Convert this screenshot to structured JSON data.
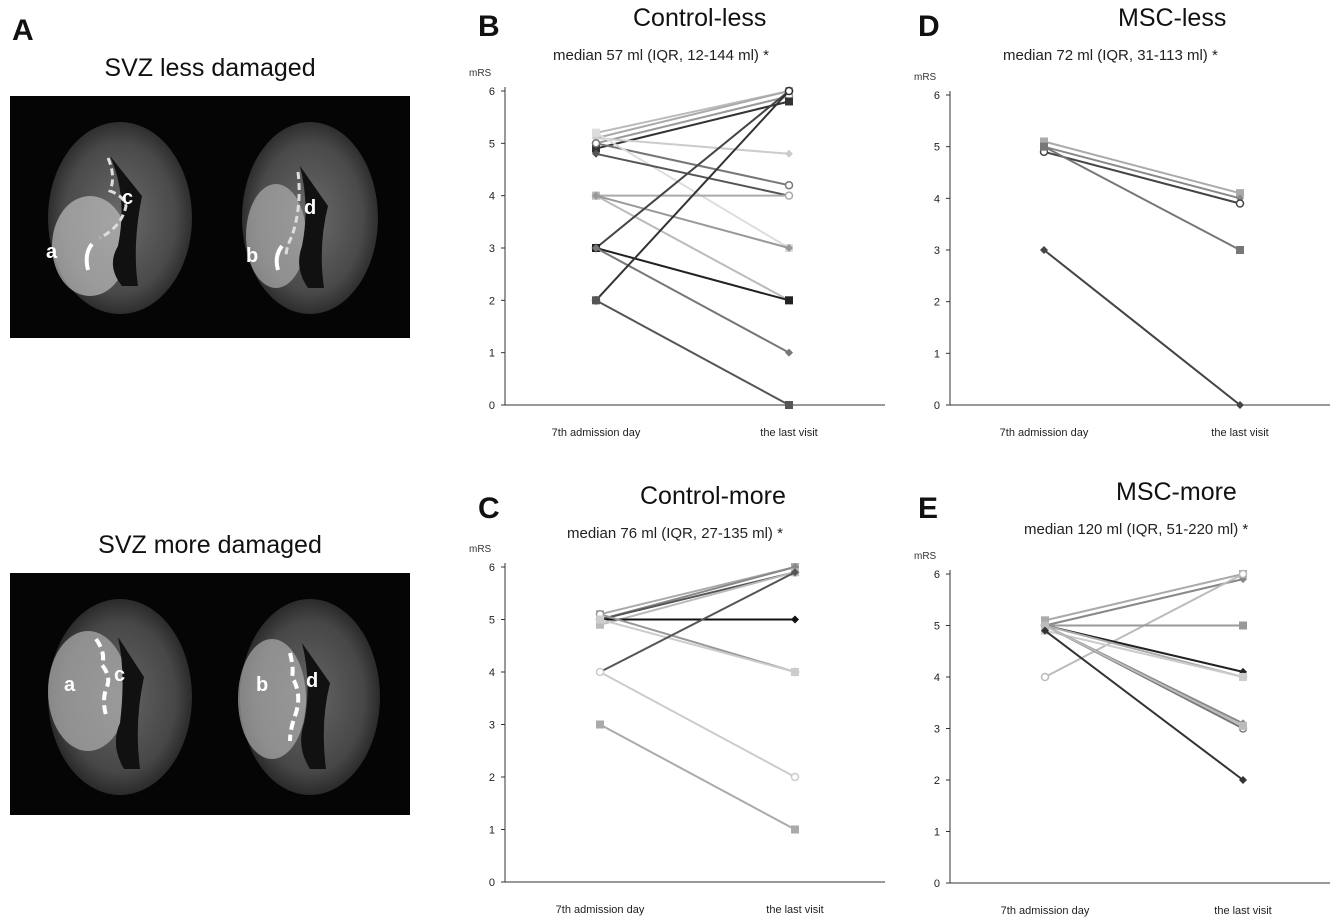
{
  "panel_a": {
    "letter": "A",
    "top": {
      "title": "SVZ less damaged",
      "labels": [
        "a",
        "c",
        "b",
        "d"
      ]
    },
    "bottom": {
      "title": "SVZ more damaged",
      "labels": [
        "a",
        "c",
        "b",
        "d"
      ]
    }
  },
  "chart_data": [
    {
      "panel": "B",
      "type": "line",
      "title": "Control-less",
      "subtitle": "median 57 ml (IQR, 12-144 ml) *",
      "ylabel": "mRS",
      "ylim": [
        0,
        6
      ],
      "yticks": [
        0,
        1,
        2,
        3,
        4,
        5,
        6
      ],
      "categories": [
        "7th admission day",
        "the last visit"
      ],
      "lines": [
        {
          "values": [
            5.2,
            6.0
          ],
          "color": "#bbbbbb"
        },
        {
          "values": [
            5.1,
            6.0
          ],
          "color": "#aaaaaa"
        },
        {
          "values": [
            5.0,
            5.9
          ],
          "color": "#999999"
        },
        {
          "values": [
            4.9,
            5.8
          ],
          "color": "#333333"
        },
        {
          "values": [
            5.1,
            4.8
          ],
          "color": "#cccccc"
        },
        {
          "values": [
            5.0,
            4.2
          ],
          "color": "#777777"
        },
        {
          "values": [
            5.2,
            3.0
          ],
          "color": "#dddddd"
        },
        {
          "values": [
            4.8,
            4.0
          ],
          "color": "#555555"
        },
        {
          "values": [
            4.0,
            4.0
          ],
          "color": "#aaaaaa"
        },
        {
          "values": [
            4.0,
            2.0
          ],
          "color": "#bbbbbb"
        },
        {
          "values": [
            4.0,
            3.0
          ],
          "color": "#999999"
        },
        {
          "values": [
            3.0,
            6.0
          ],
          "color": "#444444"
        },
        {
          "values": [
            3.0,
            2.0
          ],
          "color": "#222222"
        },
        {
          "values": [
            3.0,
            1.0
          ],
          "color": "#777777"
        },
        {
          "values": [
            2.0,
            6.0
          ],
          "color": "#333333"
        },
        {
          "values": [
            2.0,
            0.0
          ],
          "color": "#555555"
        }
      ]
    },
    {
      "panel": "C",
      "type": "line",
      "title": "Control-more",
      "subtitle": "median 76 ml (IQR, 27-135 ml) *",
      "ylabel": "mRS",
      "ylim": [
        0,
        6
      ],
      "yticks": [
        0,
        1,
        2,
        3,
        4,
        5,
        6
      ],
      "categories": [
        "7th admission day",
        "the last visit"
      ],
      "lines": [
        {
          "values": [
            5.1,
            6.0
          ],
          "color": "#aaaaaa"
        },
        {
          "values": [
            5.0,
            6.0
          ],
          "color": "#888888"
        },
        {
          "values": [
            5.0,
            5.9
          ],
          "color": "#555555"
        },
        {
          "values": [
            4.9,
            5.9
          ],
          "color": "#bbbbbb"
        },
        {
          "values": [
            5.0,
            5.0
          ],
          "color": "#111111"
        },
        {
          "values": [
            5.1,
            4.0
          ],
          "color": "#999999"
        },
        {
          "values": [
            5.0,
            4.0
          ],
          "color": "#cccccc"
        },
        {
          "values": [
            4.0,
            5.9
          ],
          "color": "#555555"
        },
        {
          "values": [
            4.0,
            2.0
          ],
          "color": "#cccccc"
        },
        {
          "values": [
            3.0,
            1.0
          ],
          "color": "#aaaaaa"
        }
      ]
    },
    {
      "panel": "D",
      "type": "line",
      "title": "MSC-less",
      "subtitle": "median 72 ml (IQR, 31-113 ml) *",
      "ylabel": "mRS",
      "ylim": [
        0,
        6
      ],
      "yticks": [
        0,
        1,
        2,
        3,
        4,
        5,
        6
      ],
      "categories": [
        "7th admission day",
        "the last visit"
      ],
      "lines": [
        {
          "values": [
            5.1,
            4.1
          ],
          "color": "#aaaaaa"
        },
        {
          "values": [
            5.0,
            4.0
          ],
          "color": "#888888"
        },
        {
          "values": [
            4.9,
            3.9
          ],
          "color": "#444444"
        },
        {
          "values": [
            5.0,
            3.0
          ],
          "color": "#777777"
        },
        {
          "values": [
            3.0,
            0.0
          ],
          "color": "#444444"
        }
      ]
    },
    {
      "panel": "E",
      "type": "line",
      "title": "MSC-more",
      "subtitle": "median 120 ml (IQR, 51-220 ml) *",
      "ylabel": "mRS",
      "ylim": [
        0,
        6
      ],
      "yticks": [
        0,
        1,
        2,
        3,
        4,
        5,
        6
      ],
      "categories": [
        "7th admission day",
        "the last visit"
      ],
      "lines": [
        {
          "values": [
            5.1,
            6.0
          ],
          "color": "#aaaaaa"
        },
        {
          "values": [
            5.0,
            5.9
          ],
          "color": "#888888"
        },
        {
          "values": [
            4.0,
            6.0
          ],
          "color": "#bbbbbb"
        },
        {
          "values": [
            5.0,
            5.0
          ],
          "color": "#999999"
        },
        {
          "values": [
            5.0,
            4.1
          ],
          "color": "#222222"
        },
        {
          "values": [
            5.0,
            4.0
          ],
          "color": "#aaaaaa"
        },
        {
          "values": [
            4.9,
            4.0
          ],
          "color": "#cccccc"
        },
        {
          "values": [
            5.0,
            3.1
          ],
          "color": "#888888"
        },
        {
          "values": [
            5.0,
            3.0
          ],
          "color": "#777777"
        },
        {
          "values": [
            5.0,
            3.05
          ],
          "color": "#bbbbbb"
        },
        {
          "values": [
            4.9,
            2.0
          ],
          "color": "#333333"
        }
      ]
    }
  ]
}
